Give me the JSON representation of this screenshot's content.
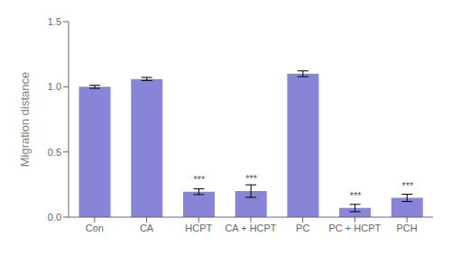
{
  "chart_data": {
    "type": "bar",
    "categories": [
      "Con",
      "CA",
      "HCPT",
      "CA + HCPT",
      "PC",
      "PC + HCPT",
      "PCH"
    ],
    "values": [
      1.0,
      1.06,
      0.195,
      0.2,
      1.1,
      0.07,
      0.148
    ],
    "errors": [
      0.012,
      0.012,
      0.022,
      0.048,
      0.022,
      0.028,
      0.028
    ],
    "annotations": [
      null,
      null,
      "***",
      "***",
      null,
      "***",
      "***"
    ],
    "ylabel": "Migration distance",
    "ylim": [
      0.0,
      1.5
    ],
    "yticks": [
      {
        "value": 0.0,
        "label": "0.0"
      },
      0.5,
      {
        "value": 1.0,
        "label": "1.0"
      },
      1.5
    ],
    "color": "#8884d8",
    "grid": false
  }
}
